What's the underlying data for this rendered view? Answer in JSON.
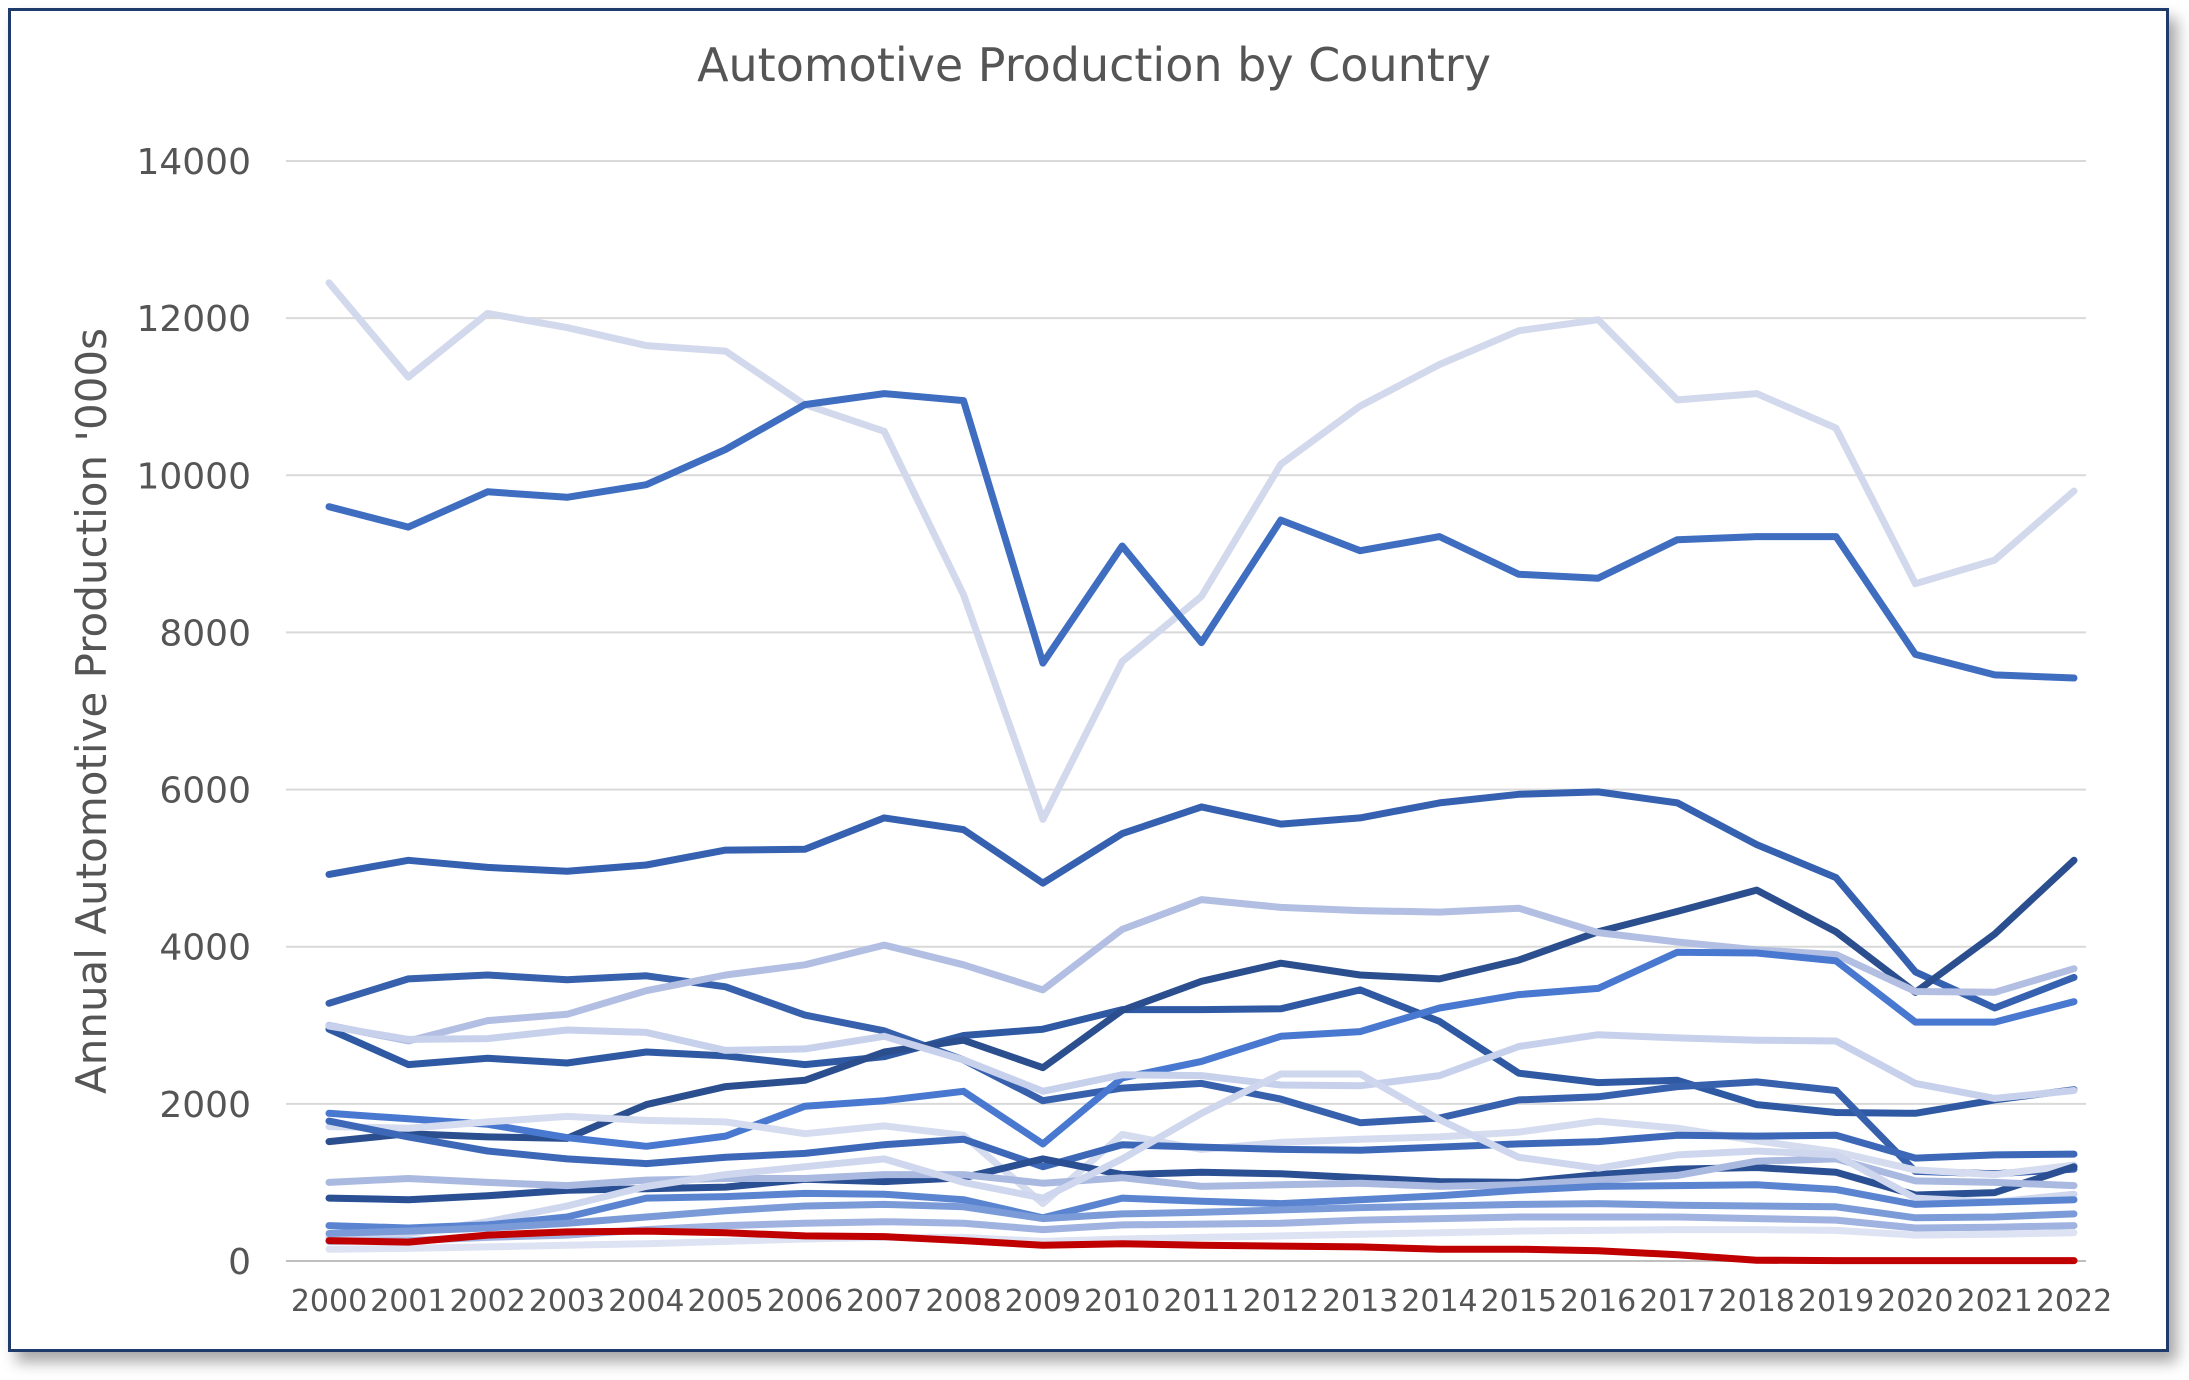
{
  "chart_data": {
    "type": "line",
    "title": "Automotive Production by Country",
    "xlabel": "",
    "ylabel": "Annual Automotive Production '000s",
    "ylim": [
      0,
      14000
    ],
    "yticks": [
      0,
      2000,
      4000,
      6000,
      8000,
      10000,
      12000,
      14000
    ],
    "grid": "horizontal",
    "legend": "none",
    "x": [
      "2000",
      "2001",
      "2002",
      "2003",
      "2004",
      "2005",
      "2006",
      "2007",
      "2008",
      "2009",
      "2010",
      "2011",
      "2012",
      "2013",
      "2014",
      "2015",
      "2016",
      "2017",
      "2018",
      "2019",
      "2020",
      "2021",
      "2022"
    ],
    "series": [
      {
        "color": "#d3d9ec",
        "values": [
          12450,
          11250,
          12060,
          11880,
          11650,
          11580,
          10900,
          10560,
          8480,
          5620,
          7630,
          8460,
          10140,
          10880,
          11410,
          11840,
          11980,
          10960,
          11040,
          10600,
          8620,
          8920,
          9800
        ]
      },
      {
        "color": "#3f6dc0",
        "values": [
          9600,
          9340,
          9790,
          9720,
          9880,
          10330,
          10900,
          11040,
          10950,
          7610,
          9100,
          7870,
          9430,
          9040,
          9220,
          8740,
          8690,
          9180,
          9220,
          9220,
          7720,
          7460,
          7420
        ]
      },
      {
        "color": "#3561b0",
        "values": [
          4920,
          5100,
          5010,
          4960,
          5040,
          5230,
          5240,
          5640,
          5490,
          4810,
          5440,
          5780,
          5560,
          5640,
          5830,
          5940,
          5970,
          5830,
          5300,
          4880,
          3680,
          3220,
          3610
        ]
      },
      {
        "color": "#2f5aa3",
        "values": [
          2950,
          2500,
          2580,
          2520,
          2660,
          2610,
          2500,
          2600,
          2870,
          2950,
          3200,
          3200,
          3210,
          3450,
          3050,
          2390,
          2270,
          2300,
          1990,
          1890,
          1880,
          2050,
          2180
        ]
      },
      {
        "color": "#3760ad",
        "values": [
          3280,
          3590,
          3640,
          3580,
          3630,
          3490,
          3130,
          2930,
          2560,
          2040,
          2200,
          2260,
          2060,
          1760,
          1820,
          2050,
          2090,
          2220,
          2280,
          2170,
          1140,
          1110,
          1170
        ]
      },
      {
        "color": "#2b4f8e",
        "values": [
          1520,
          1620,
          1580,
          1560,
          1990,
          2220,
          2300,
          2660,
          2810,
          2460,
          3190,
          3560,
          3790,
          3640,
          3590,
          3830,
          4190,
          4450,
          4720,
          4190,
          3420,
          4160,
          5100
        ]
      },
      {
        "color": "#b2bfe3",
        "values": [
          3000,
          2800,
          3060,
          3140,
          3440,
          3640,
          3770,
          4020,
          3770,
          3450,
          4220,
          4600,
          4500,
          4460,
          4440,
          4490,
          4180,
          4060,
          3960,
          3900,
          3430,
          3420,
          3720
        ]
      },
      {
        "color": "#4878cf",
        "values": [
          1880,
          1810,
          1740,
          1570,
          1460,
          1590,
          1970,
          2040,
          2160,
          1490,
          2330,
          2540,
          2860,
          2920,
          3220,
          3390,
          3470,
          3930,
          3920,
          3820,
          3040,
          3040,
          3300
        ]
      },
      {
        "color": "#c8d1ec",
        "values": [
          2990,
          2820,
          2830,
          2940,
          2910,
          2680,
          2700,
          2860,
          2560,
          2160,
          2370,
          2360,
          2240,
          2230,
          2360,
          2730,
          2880,
          2840,
          2810,
          2800,
          2260,
          2070,
          2170
        ]
      },
      {
        "color": "#d5dcef",
        "values": [
          1710,
          1690,
          1770,
          1840,
          1790,
          1770,
          1620,
          1720,
          1600,
          730,
          1610,
          1420,
          1510,
          1550,
          1580,
          1640,
          1780,
          1690,
          1530,
          1390,
          1160,
          1100,
          1220
        ]
      },
      {
        "color": "#3d68b8",
        "values": [
          1780,
          1580,
          1400,
          1300,
          1240,
          1320,
          1370,
          1480,
          1550,
          1200,
          1480,
          1450,
          1420,
          1410,
          1450,
          1490,
          1520,
          1600,
          1590,
          1600,
          1310,
          1350,
          1360
        ]
      },
      {
        "color": "#2a4f92",
        "values": [
          800,
          780,
          830,
          900,
          920,
          940,
          1040,
          1010,
          1060,
          1300,
          1100,
          1130,
          1110,
          1060,
          1010,
          1000,
          1100,
          1170,
          1190,
          1130,
          840,
          870,
          1200
        ]
      },
      {
        "color": "#aab9e0",
        "values": [
          1000,
          1050,
          1000,
          960,
          1030,
          1050,
          1050,
          1100,
          1100,
          990,
          1060,
          950,
          970,
          990,
          950,
          970,
          1030,
          1090,
          1270,
          1300,
          1020,
          1000,
          960
        ]
      },
      {
        "color": "#cfd7ee",
        "values": [
          300,
          350,
          500,
          700,
          950,
          1100,
          1200,
          1300,
          1000,
          800,
          1300,
          1880,
          2380,
          2380,
          1800,
          1320,
          1180,
          1350,
          1400,
          1350,
          800,
          750,
          850
        ]
      },
      {
        "color": "#5a84d0",
        "values": [
          450,
          420,
          460,
          560,
          800,
          820,
          860,
          850,
          780,
          550,
          800,
          760,
          730,
          780,
          830,
          900,
          950,
          960,
          970,
          910,
          720,
          750,
          780
        ]
      },
      {
        "color": "#7b9bd8",
        "values": [
          350,
          380,
          420,
          480,
          560,
          640,
          700,
          720,
          690,
          540,
          600,
          620,
          650,
          680,
          700,
          720,
          730,
          710,
          700,
          690,
          550,
          560,
          600
        ]
      },
      {
        "color": "#9fb2e0",
        "values": [
          250,
          260,
          300,
          330,
          400,
          450,
          480,
          500,
          480,
          400,
          460,
          470,
          480,
          520,
          540,
          560,
          560,
          560,
          540,
          520,
          420,
          430,
          450
        ]
      },
      {
        "color": "#dde3f3",
        "values": [
          150,
          160,
          180,
          200,
          220,
          250,
          280,
          300,
          300,
          250,
          280,
          300,
          320,
          340,
          360,
          380,
          390,
          400,
          400,
          390,
          330,
          340,
          360
        ]
      },
      {
        "color": "#c00000",
        "values": [
          260,
          240,
          330,
          370,
          380,
          360,
          320,
          310,
          260,
          200,
          220,
          200,
          190,
          180,
          150,
          150,
          130,
          80,
          10,
          5,
          5,
          5,
          5
        ]
      }
    ]
  }
}
